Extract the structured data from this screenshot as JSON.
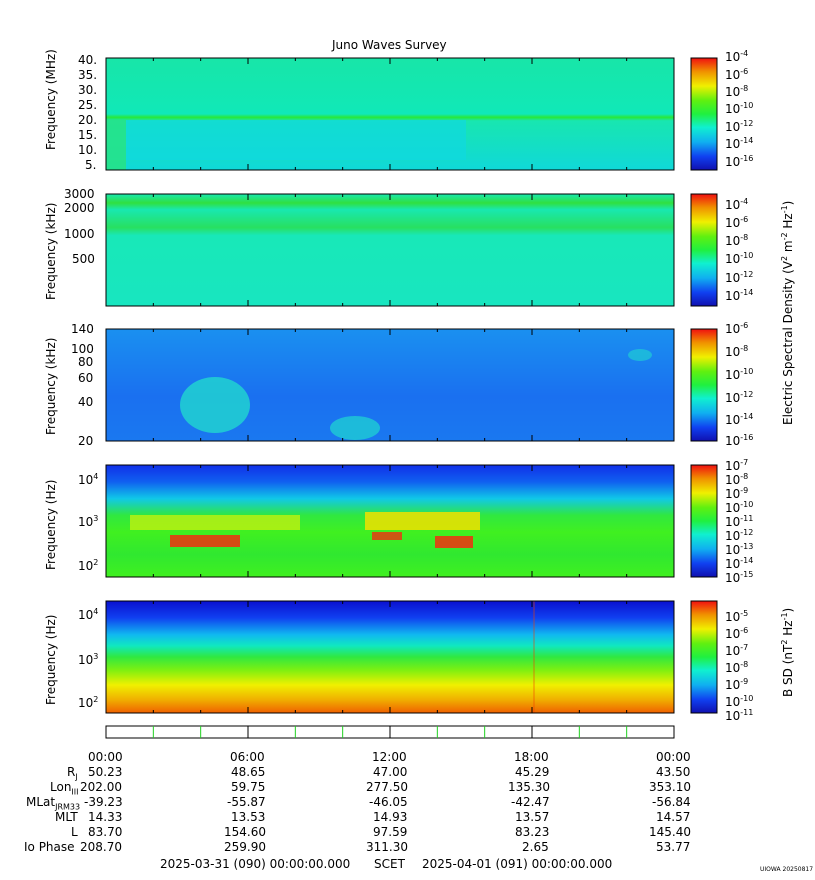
{
  "title": "Juno Waves Survey",
  "colors": {
    "background_teal": "#19f0c8",
    "low_blue": "#1f73e6",
    "green": "#19e61f",
    "yellow": "#f0f000",
    "red": "#e61919",
    "dark_blue": "#0a14c8"
  },
  "chart_data": [
    {
      "type": "heatmap",
      "ylabel": "Frequency (MHz)",
      "yticks": [
        "40.",
        "35.",
        "30.",
        "25.",
        "20.",
        "15.",
        "10.",
        "5."
      ],
      "ylim": [
        3.5,
        41
      ],
      "colorbar_ticks": [
        "-4",
        "-6",
        "-8",
        "-10",
        "-12",
        "-14",
        "-16"
      ]
    },
    {
      "type": "heatmap",
      "ylabel": "Frequency (kHz)",
      "yticks": [
        "3000",
        "2000",
        "1000",
        "500"
      ],
      "colorbar_ticks": [
        "-4",
        "-6",
        "-8",
        "-10",
        "-12",
        "-14"
      ]
    },
    {
      "type": "heatmap",
      "ylabel": "Frequency (kHz)",
      "yticks": [
        "140",
        "100",
        "80",
        "60",
        "40",
        "20"
      ],
      "ylim": [
        20,
        140
      ],
      "colorbar_ticks": [
        "-6",
        "-8",
        "-10",
        "-12",
        "-14",
        "-16"
      ]
    },
    {
      "type": "heatmap",
      "ylabel": "Frequency (Hz)",
      "yticks": [
        "4",
        "3",
        "2"
      ],
      "colorbar_ticks": [
        "-7",
        "-8",
        "-9",
        "-10",
        "-11",
        "-12",
        "-13",
        "-14",
        "-15"
      ]
    },
    {
      "type": "heatmap",
      "ylabel": "Frequency (Hz)",
      "yticks": [
        "4",
        "3",
        "2"
      ],
      "colorbar_ticks": [
        "-5",
        "-6",
        "-7",
        "-8",
        "-9",
        "-10",
        "-11"
      ]
    }
  ],
  "colorbar_label_e": "Electric Spectral Density (V",
  "colorbar_label_e_parts": {
    "a": "Electric Spectral Density (V",
    "b": "2",
    "c": " m",
    "d": "-2",
    "e": " Hz",
    "f": "-1",
    "g": ")"
  },
  "colorbar_label_b_parts": {
    "a": "B SD (nT",
    "b": "2",
    "c": " Hz",
    "d": "-1",
    "e": ")"
  },
  "colorbar_base": "10",
  "time_ticks": [
    "00:00",
    "06:00",
    "12:00",
    "18:00",
    "00:00"
  ],
  "ephemeris": {
    "rows": [
      {
        "label": "R",
        "sub": "J",
        "values": [
          "50.23",
          "48.65",
          "47.00",
          "45.29",
          "43.50"
        ]
      },
      {
        "label": "Lon",
        "sub": "III",
        "values": [
          "202.00",
          "59.75",
          "277.50",
          "135.30",
          "353.10"
        ]
      },
      {
        "label": "MLat",
        "sub": "JRM33",
        "values": [
          "-39.23",
          "-55.87",
          "-46.05",
          "-42.47",
          "-56.84"
        ]
      },
      {
        "label": "MLT",
        "sub": "",
        "values": [
          "14.33",
          "13.53",
          "14.93",
          "13.57",
          "14.57"
        ]
      },
      {
        "label": "L",
        "sub": "",
        "values": [
          "83.70",
          "154.60",
          "97.59",
          "83.23",
          "145.40"
        ]
      },
      {
        "label": "Io Phase",
        "sub": "",
        "values": [
          "208.70",
          "259.90",
          "311.30",
          "2.65",
          "53.77"
        ]
      }
    ]
  },
  "footer": {
    "start": "2025-03-31 (090) 00:00:00.000",
    "scet": "SCET",
    "end": "2025-04-01 (091) 00:00:00.000",
    "stamp": "UIOWA 20250817"
  }
}
